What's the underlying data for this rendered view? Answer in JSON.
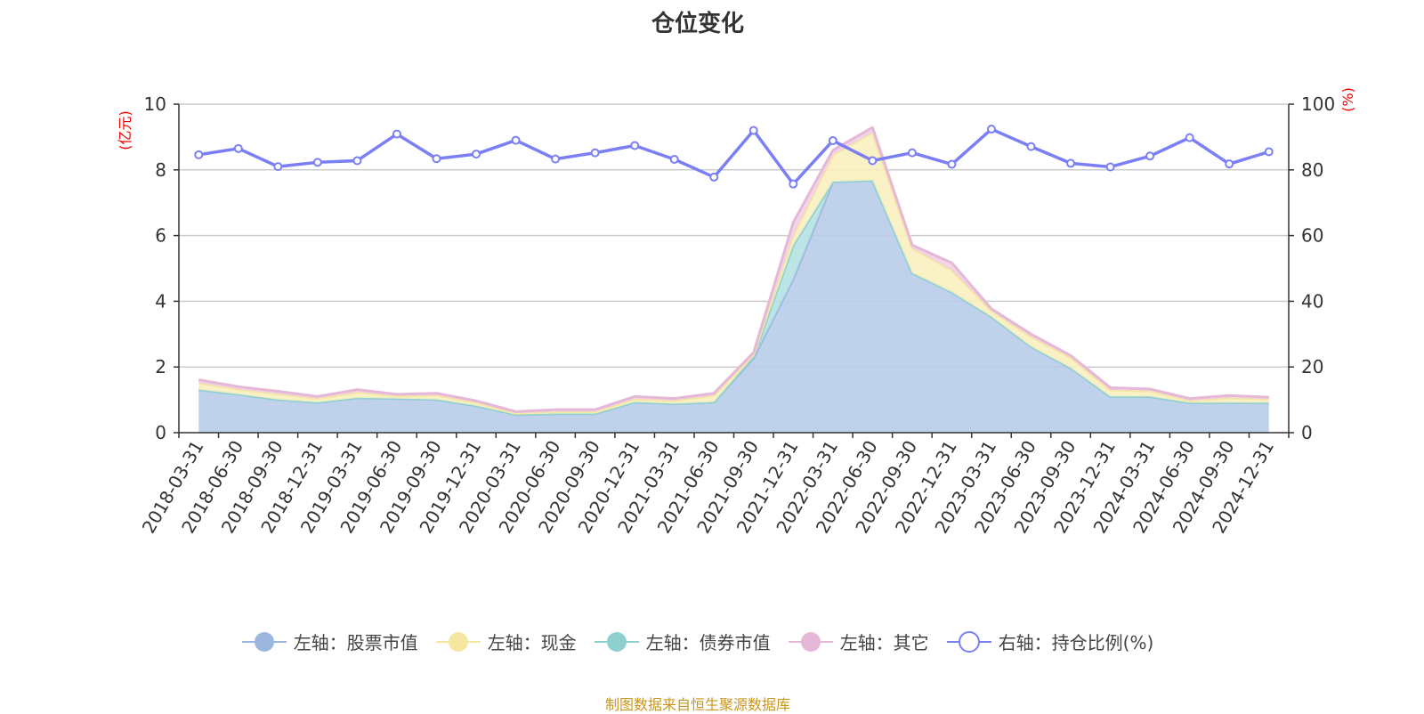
{
  "chart_data": {
    "type": "area",
    "title": "仓位变化",
    "categories": [
      "2018-03-31",
      "2018-06-30",
      "2018-09-30",
      "2018-12-31",
      "2019-03-31",
      "2019-06-30",
      "2019-09-30",
      "2019-12-31",
      "2020-03-31",
      "2020-06-30",
      "2020-09-30",
      "2020-12-31",
      "2021-03-31",
      "2021-06-30",
      "2021-09-30",
      "2021-12-31",
      "2022-03-31",
      "2022-06-30",
      "2022-09-30",
      "2022-12-31",
      "2023-03-31",
      "2023-06-30",
      "2023-09-30",
      "2023-12-31",
      "2024-03-31",
      "2024-06-30",
      "2024-09-30",
      "2024-12-31"
    ],
    "left_axis": {
      "name": "(亿元)",
      "ylim": [
        0,
        10
      ],
      "ticks": [
        "0",
        "2",
        "4",
        "6",
        "8",
        "10"
      ]
    },
    "right_axis": {
      "name": "(%)",
      "ylim": [
        0,
        100
      ],
      "ticks": [
        "0",
        "20",
        "40",
        "60",
        "80",
        "100"
      ]
    },
    "grid": true,
    "legend_position": "bottom",
    "stacked": true,
    "series": [
      {
        "name": "左轴：股票市值",
        "axis": "left",
        "kind": "area",
        "color": "#9bb7e0",
        "fill": "#b8cce9",
        "values": [
          1.31,
          1.17,
          1.01,
          0.92,
          1.06,
          1.04,
          1.01,
          0.82,
          0.55,
          0.58,
          0.58,
          0.93,
          0.88,
          0.93,
          2.28,
          4.68,
          7.64,
          7.68,
          4.86,
          4.28,
          3.53,
          2.62,
          1.97,
          1.1,
          1.1,
          0.91,
          0.91,
          0.91
        ]
      },
      {
        "name": "左轴：现金",
        "axis": "left",
        "kind": "area",
        "color": "#f5e6a0",
        "fill": "#faefc0",
        "values": [
          0.2,
          0.15,
          0.17,
          0.12,
          0.17,
          0.08,
          0.13,
          0.1,
          0.04,
          0.06,
          0.06,
          0.1,
          0.1,
          0.2,
          0.05,
          0.29,
          0.82,
          1.45,
          0.76,
          0.67,
          0.18,
          0.3,
          0.32,
          0.2,
          0.17,
          0.07,
          0.15,
          0.11
        ]
      },
      {
        "name": "左轴：债券市值",
        "axis": "left",
        "kind": "area",
        "color": "#8ed0d0",
        "fill": "#b5e2e2",
        "values": [
          0,
          0,
          0,
          0,
          0,
          0,
          0,
          0,
          0,
          0,
          0,
          0,
          0,
          0,
          0.05,
          1.03,
          0,
          0,
          0,
          0,
          0,
          0,
          0,
          0,
          0,
          0,
          0,
          0
        ]
      },
      {
        "name": "左轴：其它",
        "axis": "left",
        "kind": "area",
        "color": "#e6b8d8",
        "fill": "#efd0e6",
        "values": [
          0.1,
          0.08,
          0.08,
          0.06,
          0.08,
          0.05,
          0.06,
          0.05,
          0.05,
          0.06,
          0.06,
          0.07,
          0.06,
          0.07,
          0.06,
          0.4,
          0.14,
          0.16,
          0.09,
          0.22,
          0.06,
          0.08,
          0.06,
          0.07,
          0.06,
          0.06,
          0.07,
          0.06
        ]
      },
      {
        "name": "右轴：持仓比例(%)",
        "axis": "right",
        "kind": "line",
        "color": "#7b7ff5",
        "values": [
          84.6,
          86.5,
          81.0,
          82.3,
          82.8,
          90.9,
          83.4,
          84.8,
          89.0,
          83.3,
          85.2,
          87.4,
          83.2,
          77.8,
          92.0,
          75.7,
          88.9,
          82.8,
          85.2,
          81.7,
          92.4,
          87.1,
          82.0,
          80.9,
          84.2,
          89.8,
          81.8,
          85.5
        ]
      }
    ]
  },
  "footer": "制图数据来自恒生聚源数据库"
}
